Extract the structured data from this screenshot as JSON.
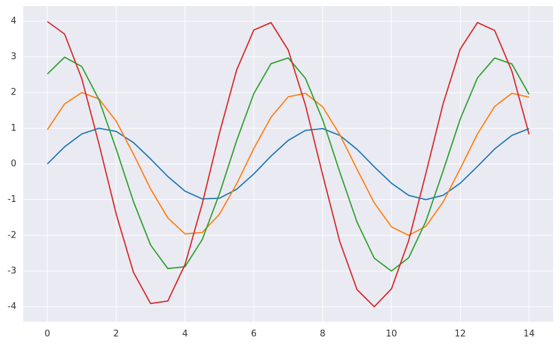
{
  "chart_data": {
    "type": "line",
    "x": [
      0,
      0.5,
      1,
      1.5,
      2,
      2.5,
      3,
      3.5,
      4,
      4.5,
      5,
      5.5,
      6,
      6.5,
      7,
      7.5,
      8,
      8.5,
      9,
      9.5,
      10,
      10.5,
      11,
      11.5,
      12,
      12.5,
      13,
      13.5,
      14
    ],
    "series": [
      {
        "color": "#1f77b4",
        "values": [
          0,
          0.48,
          0.84,
          1.0,
          0.91,
          0.6,
          0.14,
          -0.35,
          -0.76,
          -0.98,
          -0.96,
          -0.71,
          -0.28,
          0.22,
          0.66,
          0.94,
          0.99,
          0.8,
          0.41,
          -0.08,
          -0.54,
          -0.88,
          -1.0,
          -0.88,
          -0.54,
          -0.07,
          0.42,
          0.8,
          0.99
        ]
      },
      {
        "color": "#ff7f0e",
        "values": [
          0.96,
          1.68,
          2.0,
          1.82,
          1.2,
          0.28,
          -0.7,
          -1.51,
          -1.96,
          -1.92,
          -1.41,
          -0.56,
          0.43,
          1.31,
          1.88,
          1.98,
          1.6,
          0.82,
          -0.15,
          -1.09,
          -1.76,
          -2.0,
          -1.75,
          -1.07,
          -0.13,
          0.84,
          1.61,
          1.98,
          1.87
        ]
      },
      {
        "color": "#2ca02c",
        "values": [
          2.52,
          2.99,
          2.73,
          1.8,
          0.42,
          -1.05,
          -2.27,
          -2.93,
          -2.88,
          -2.12,
          -0.84,
          0.65,
          1.97,
          2.81,
          2.97,
          2.4,
          1.24,
          -0.23,
          -1.63,
          -2.64,
          -3.0,
          -2.63,
          -1.61,
          -0.2,
          1.26,
          2.41,
          2.97,
          2.8,
          1.95
        ]
      },
      {
        "color": "#d62728",
        "values": [
          3.99,
          3.64,
          2.39,
          0.56,
          -1.4,
          -3.03,
          -3.91,
          -3.84,
          -2.82,
          -1.12,
          0.86,
          2.63,
          3.75,
          3.96,
          3.19,
          1.65,
          -0.3,
          -2.18,
          -3.52,
          -4.0,
          -3.5,
          -2.15,
          -0.27,
          1.68,
          3.22,
          3.96,
          3.74,
          2.6,
          0.83
        ]
      }
    ],
    "xlim": [
      -0.7,
      14.7
    ],
    "ylim": [
      -4.42,
      4.42
    ],
    "xticks": [
      0,
      2,
      4,
      6,
      8,
      10,
      12,
      14
    ],
    "yticks": [
      -4,
      -3,
      -2,
      -1,
      0,
      1,
      2,
      3,
      4
    ],
    "grid": true
  }
}
